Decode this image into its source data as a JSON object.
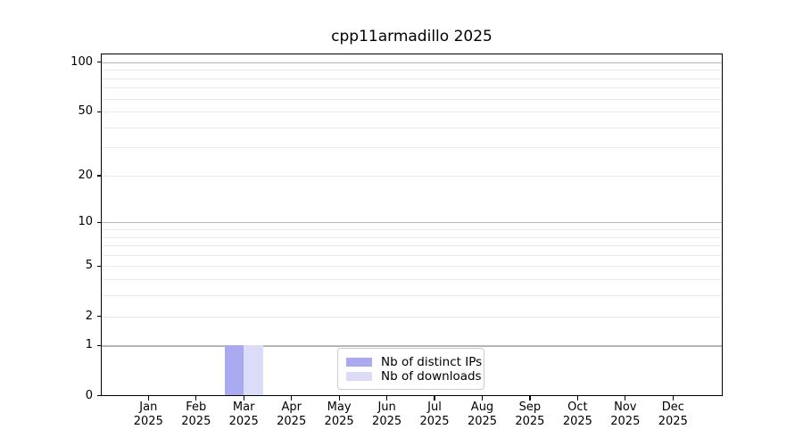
{
  "chart_data": {
    "type": "bar",
    "title": "cpp11armadillo 2025",
    "x": {
      "months": [
        "Jan",
        "Feb",
        "Mar",
        "Apr",
        "May",
        "Jun",
        "Jul",
        "Aug",
        "Sep",
        "Oct",
        "Nov",
        "Dec"
      ],
      "year": "2025"
    },
    "series": [
      {
        "name": "Nb of distinct IPs",
        "color": "#aaaaf2",
        "values": [
          0,
          0,
          1,
          0,
          0,
          0,
          0,
          0,
          0,
          0,
          0,
          0
        ]
      },
      {
        "name": "Nb of downloads",
        "color": "#dcdcf8",
        "values": [
          0,
          0,
          1,
          0,
          0,
          0,
          0,
          0,
          0,
          0,
          0,
          0
        ]
      }
    ],
    "yscale": "log1p",
    "ylim": [
      0,
      113
    ],
    "yticks": [
      0,
      1,
      2,
      5,
      10,
      20,
      50,
      100
    ],
    "grid": {
      "major_values": [
        1,
        10,
        100
      ],
      "minor_values": [
        2,
        3,
        4,
        5,
        6,
        7,
        8,
        9,
        20,
        30,
        40,
        50,
        60,
        70,
        80,
        90
      ],
      "major_color": "#b6b6b6",
      "minor_color": "#e9e9e9"
    },
    "legend_position": "lower center",
    "text_color": "#000000",
    "background_color": "#ffffff"
  }
}
